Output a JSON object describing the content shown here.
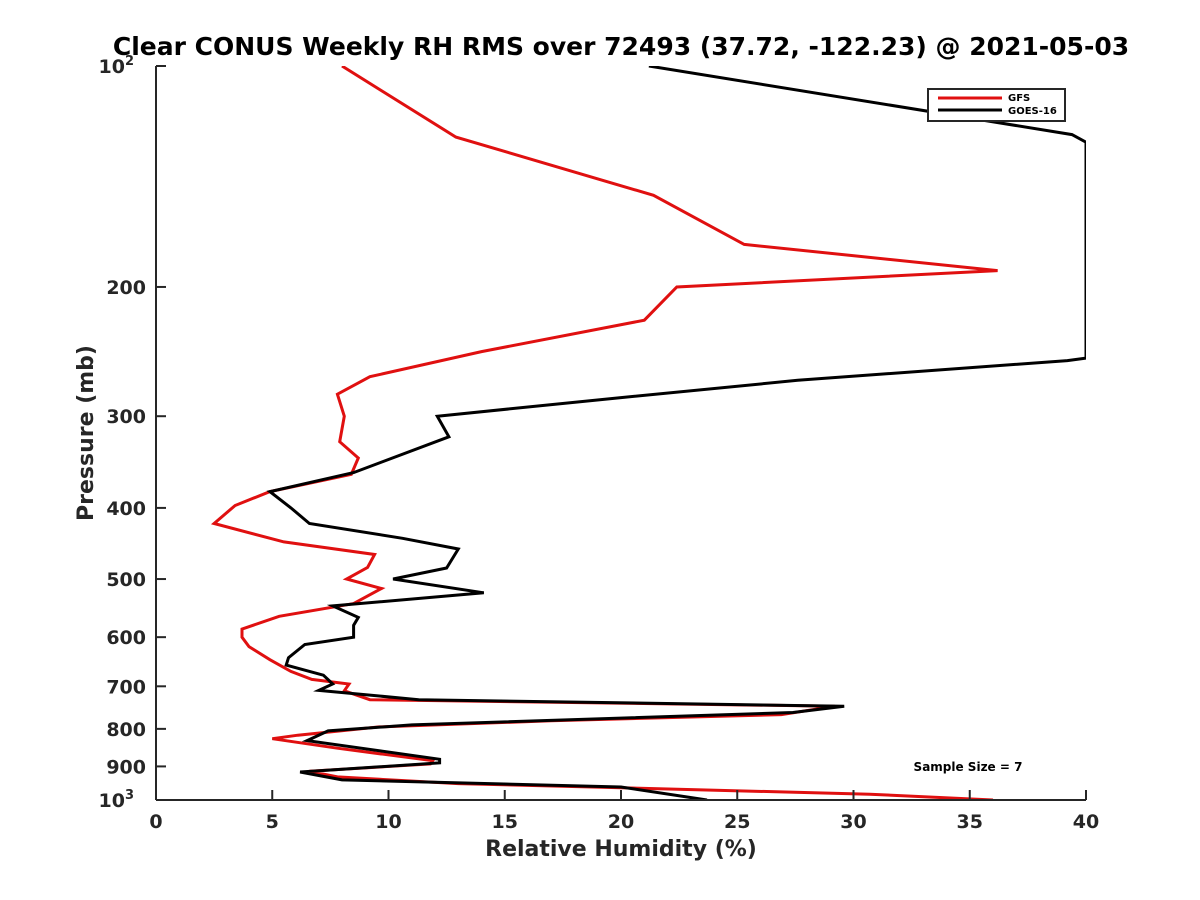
{
  "chart_data": {
    "type": "line",
    "title": "Clear CONUS Weekly RH RMS over 72493 (37.72, -122.23) @ 2021-05-03",
    "xlabel": "Relative Humidity (%)",
    "ylabel": "Pressure (mb)",
    "xlim": [
      0,
      40
    ],
    "ylim": [
      100,
      1000
    ],
    "y_scale": "log",
    "y_reversed": true,
    "grid": false,
    "x_ticks": [
      "0",
      "5",
      "10",
      "15",
      "20",
      "25",
      "30",
      "35",
      "40"
    ],
    "y_ticks": [
      {
        "value": 100,
        "label": "10",
        "sup": "2"
      },
      {
        "value": 200,
        "label": "200",
        "sup": ""
      },
      {
        "value": 300,
        "label": "300",
        "sup": ""
      },
      {
        "value": 400,
        "label": "400",
        "sup": ""
      },
      {
        "value": 500,
        "label": "500",
        "sup": ""
      },
      {
        "value": 600,
        "label": "600",
        "sup": ""
      },
      {
        "value": 700,
        "label": "700",
        "sup": ""
      },
      {
        "value": 800,
        "label": "800",
        "sup": ""
      },
      {
        "value": 900,
        "label": "900",
        "sup": ""
      },
      {
        "value": 1000,
        "label": "10",
        "sup": "3"
      }
    ],
    "legend_position": "top-right",
    "annotation": "Sample Size = 7",
    "series": [
      {
        "name": "GFS",
        "color": "#e01010",
        "points": [
          [
            8.0,
            100
          ],
          [
            12.9,
            125
          ],
          [
            21.4,
            150
          ],
          [
            25.3,
            175
          ],
          [
            36.2,
            190
          ],
          [
            22.4,
            200
          ],
          [
            21.0,
            222
          ],
          [
            14.0,
            245
          ],
          [
            9.2,
            265
          ],
          [
            7.8,
            280
          ],
          [
            8.1,
            300
          ],
          [
            7.9,
            325
          ],
          [
            8.7,
            342
          ],
          [
            8.4,
            360
          ],
          [
            4.9,
            380
          ],
          [
            3.4,
            397
          ],
          [
            2.5,
            420
          ],
          [
            5.5,
            445
          ],
          [
            9.4,
            463
          ],
          [
            9.1,
            482
          ],
          [
            8.2,
            500
          ],
          [
            9.7,
            515
          ],
          [
            8.5,
            540
          ],
          [
            5.3,
            562
          ],
          [
            3.7,
            585
          ],
          [
            3.7,
            600
          ],
          [
            4.0,
            618
          ],
          [
            4.9,
            644
          ],
          [
            5.8,
            668
          ],
          [
            6.7,
            685
          ],
          [
            8.3,
            695
          ],
          [
            8.1,
            710
          ],
          [
            9.2,
            730
          ],
          [
            29.2,
            745
          ],
          [
            26.9,
            765
          ],
          [
            17.0,
            780
          ],
          [
            9.6,
            795
          ],
          [
            6.1,
            816
          ],
          [
            5.0,
            825
          ],
          [
            7.8,
            850
          ],
          [
            11.9,
            884
          ],
          [
            11.8,
            893
          ],
          [
            6.6,
            914
          ],
          [
            7.8,
            930
          ],
          [
            13.0,
            950
          ],
          [
            30.7,
            982
          ],
          [
            36.0,
            1000
          ]
        ]
      },
      {
        "name": "GOES-16",
        "color": "#000000",
        "points": [
          [
            21.2,
            100
          ],
          [
            39.4,
            124
          ],
          [
            40.0,
            127
          ],
          [
            40.0,
            250
          ],
          [
            39.2,
            252
          ],
          [
            27.6,
            268
          ],
          [
            20.0,
            283
          ],
          [
            12.1,
            300
          ],
          [
            12.6,
            320
          ],
          [
            8.5,
            358
          ],
          [
            4.9,
            380
          ],
          [
            5.8,
            400
          ],
          [
            6.6,
            420
          ],
          [
            10.6,
            440
          ],
          [
            13.0,
            455
          ],
          [
            12.5,
            483
          ],
          [
            10.2,
            500
          ],
          [
            14.1,
            522
          ],
          [
            7.6,
            544
          ],
          [
            8.7,
            564
          ],
          [
            8.5,
            578
          ],
          [
            8.5,
            600
          ],
          [
            6.4,
            614
          ],
          [
            5.7,
            640
          ],
          [
            5.6,
            655
          ],
          [
            7.2,
            676
          ],
          [
            7.6,
            695
          ],
          [
            7.0,
            709
          ],
          [
            11.3,
            730
          ],
          [
            29.6,
            745
          ],
          [
            27.4,
            760
          ],
          [
            11.0,
            790
          ],
          [
            7.4,
            805
          ],
          [
            6.5,
            830
          ],
          [
            12.2,
            880
          ],
          [
            12.2,
            890
          ],
          [
            6.2,
            916
          ],
          [
            8.0,
            939
          ],
          [
            20.0,
            960
          ],
          [
            23.7,
            1000
          ]
        ]
      }
    ]
  }
}
